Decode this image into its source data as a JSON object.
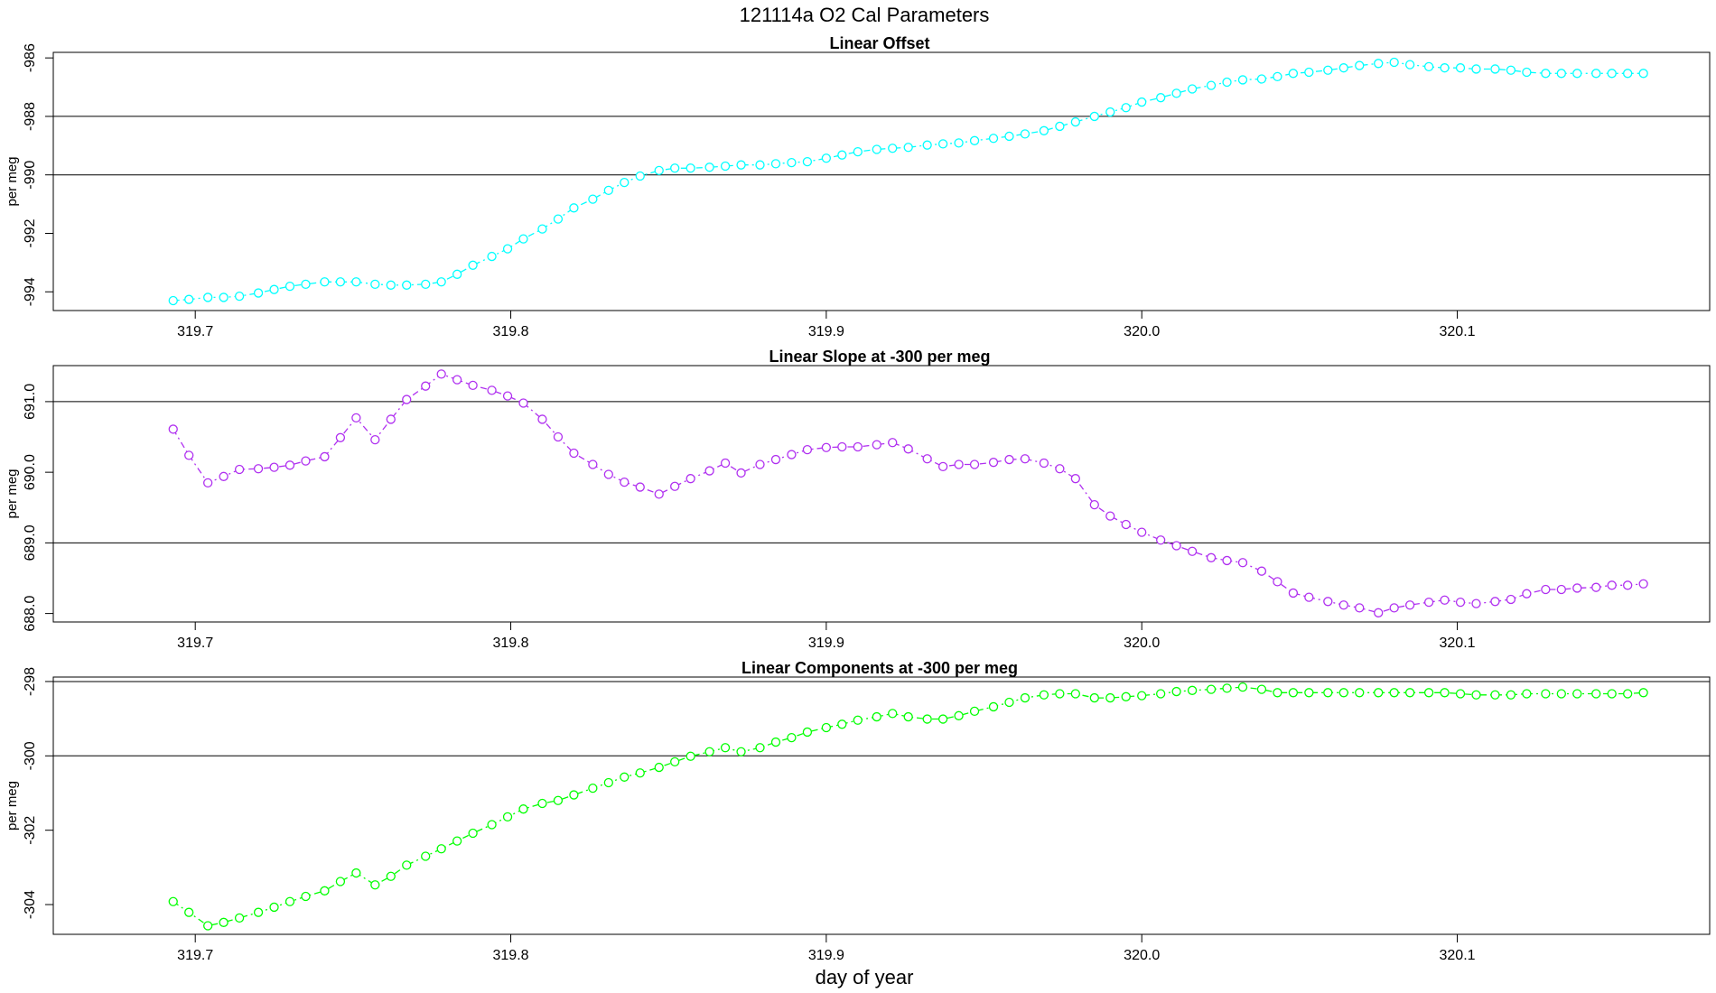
{
  "title": "121114a   O2 Cal Parameters",
  "xlabel": "day of year",
  "chart_data": [
    {
      "type": "scatter",
      "title": "Linear Offset",
      "ylabel": "per meg",
      "color": "#00ffff",
      "xlim": [
        319.655,
        320.18
      ],
      "xticks": [
        319.7,
        319.8,
        319.9,
        {
          "value": 320.0,
          "label": "320.0"
        },
        320.1
      ],
      "ylim": [
        -994.64,
        -985.81
      ],
      "yticks": [
        -994,
        -992,
        -990,
        -988,
        -986
      ],
      "hlines": [
        -988,
        -990
      ],
      "x": [
        319.693,
        319.698,
        319.704,
        319.709,
        319.714,
        319.72,
        319.725,
        319.73,
        319.735,
        319.741,
        319.746,
        319.751,
        319.757,
        319.762,
        319.767,
        319.773,
        319.778,
        319.783,
        319.788,
        319.794,
        319.799,
        319.804,
        319.81,
        319.815,
        319.82,
        319.826,
        319.831,
        319.836,
        319.841,
        319.847,
        319.852,
        319.857,
        319.863,
        319.868,
        319.873,
        319.879,
        319.884,
        319.889,
        319.894,
        319.9,
        319.905,
        319.91,
        319.916,
        319.921,
        319.926,
        319.932,
        319.937,
        319.942,
        319.947,
        319.953,
        319.958,
        319.963,
        319.969,
        319.974,
        319.979,
        319.985,
        319.99,
        319.995,
        320.0,
        320.006,
        320.011,
        320.016,
        320.022,
        320.027,
        320.032,
        320.038,
        320.043,
        320.048,
        320.053,
        320.059,
        320.064,
        320.069,
        320.075,
        320.08,
        320.085,
        320.091,
        320.096,
        320.101,
        320.106,
        320.112,
        320.117,
        320.122,
        320.128,
        320.133,
        320.138,
        320.144,
        320.149,
        320.154,
        320.159
      ],
      "values": [
        -994.3,
        -994.26,
        -994.19,
        -994.19,
        -994.15,
        -994.04,
        -993.92,
        -993.81,
        -993.74,
        -993.66,
        -993.66,
        -993.66,
        -993.74,
        -993.77,
        -993.77,
        -993.74,
        -993.66,
        -993.4,
        -993.09,
        -992.79,
        -992.53,
        -992.19,
        -991.85,
        -991.51,
        -991.13,
        -990.83,
        -990.53,
        -990.26,
        -990.04,
        -989.85,
        -989.77,
        -989.77,
        -989.74,
        -989.7,
        -989.66,
        -989.66,
        -989.62,
        -989.58,
        -989.55,
        -989.43,
        -989.32,
        -989.21,
        -989.13,
        -989.09,
        -989.06,
        -988.98,
        -988.94,
        -988.91,
        -988.83,
        -988.75,
        -988.68,
        -988.6,
        -988.49,
        -988.34,
        -988.19,
        -988.0,
        -987.85,
        -987.7,
        -987.51,
        -987.36,
        -987.21,
        -987.06,
        -986.94,
        -986.83,
        -986.75,
        -986.72,
        -986.64,
        -986.53,
        -986.49,
        -986.42,
        -986.34,
        -986.26,
        -986.19,
        -986.15,
        -986.23,
        -986.3,
        -986.34,
        -986.34,
        -986.38,
        -986.38,
        -986.42,
        -986.49,
        -986.53,
        -986.53,
        -986.53,
        -986.53,
        -986.53,
        -986.53,
        -986.53
      ]
    },
    {
      "type": "scatter",
      "title": "Linear Slope at -300 per meg",
      "ylabel": "per meg",
      "color": "#b030f0",
      "xlim": [
        319.655,
        320.18
      ],
      "xticks": [
        319.7,
        319.8,
        319.9,
        {
          "value": 320.0,
          "label": "320.0"
        },
        320.1
      ],
      "ylim": [
        687.88,
        691.51
      ],
      "yticks": [
        {
          "value": 688,
          "label": "688.0"
        },
        {
          "value": 689,
          "label": "689.0"
        },
        {
          "value": 690,
          "label": "690.0"
        },
        {
          "value": 691,
          "label": "691.0"
        }
      ],
      "hlines": [
        691,
        689
      ],
      "x": [
        319.693,
        319.698,
        319.704,
        319.709,
        319.714,
        319.72,
        319.725,
        319.73,
        319.735,
        319.741,
        319.746,
        319.751,
        319.757,
        319.762,
        319.767,
        319.773,
        319.778,
        319.783,
        319.788,
        319.794,
        319.799,
        319.804,
        319.81,
        319.815,
        319.82,
        319.826,
        319.831,
        319.836,
        319.841,
        319.847,
        319.852,
        319.857,
        319.863,
        319.868,
        319.873,
        319.879,
        319.884,
        319.889,
        319.894,
        319.9,
        319.905,
        319.91,
        319.916,
        319.921,
        319.926,
        319.932,
        319.937,
        319.942,
        319.947,
        319.953,
        319.958,
        319.963,
        319.969,
        319.974,
        319.979,
        319.985,
        319.99,
        319.995,
        320.0,
        320.006,
        320.011,
        320.016,
        320.022,
        320.027,
        320.032,
        320.038,
        320.043,
        320.048,
        320.053,
        320.059,
        320.064,
        320.069,
        320.075,
        320.08,
        320.085,
        320.091,
        320.096,
        320.101,
        320.106,
        320.112,
        320.117,
        320.122,
        320.128,
        320.133,
        320.138,
        320.144,
        320.149,
        320.154,
        320.159
      ],
      "values": [
        690.61,
        690.24,
        689.85,
        689.94,
        690.04,
        690.05,
        690.07,
        690.1,
        690.16,
        690.22,
        690.49,
        690.77,
        690.46,
        690.75,
        691.03,
        691.22,
        691.39,
        691.31,
        691.23,
        691.16,
        691.08,
        690.98,
        690.75,
        690.5,
        690.27,
        690.11,
        689.97,
        689.86,
        689.79,
        689.69,
        689.8,
        689.91,
        690.02,
        690.13,
        689.99,
        690.11,
        690.18,
        690.25,
        690.32,
        690.35,
        690.36,
        690.36,
        690.39,
        690.42,
        690.33,
        690.19,
        690.08,
        690.11,
        690.11,
        690.14,
        690.18,
        690.19,
        690.13,
        690.05,
        689.91,
        689.54,
        689.38,
        689.26,
        689.15,
        689.04,
        688.96,
        688.88,
        688.79,
        688.75,
        688.72,
        688.6,
        688.45,
        688.29,
        688.23,
        688.17,
        688.12,
        688.08,
        688.01,
        688.08,
        688.12,
        688.16,
        688.19,
        688.16,
        688.14,
        688.17,
        688.2,
        688.28,
        688.34,
        688.34,
        688.36,
        688.37,
        688.4,
        688.4,
        688.42
      ]
    },
    {
      "type": "scatter",
      "title": "Linear Components at -300 per meg",
      "ylabel": "per meg",
      "color": "#00ff00",
      "xlim": [
        319.655,
        320.18
      ],
      "xticks": [
        319.7,
        319.8,
        319.9,
        {
          "value": 320.0,
          "label": "320.0"
        },
        320.1
      ],
      "ylim": [
        -304.8,
        -297.88
      ],
      "yticks": [
        -304,
        -302,
        -300,
        -298
      ],
      "hlines": [
        -298,
        -300
      ],
      "x": [
        319.693,
        319.698,
        319.704,
        319.709,
        319.714,
        319.72,
        319.725,
        319.73,
        319.735,
        319.741,
        319.746,
        319.751,
        319.757,
        319.762,
        319.767,
        319.773,
        319.778,
        319.783,
        319.788,
        319.794,
        319.799,
        319.804,
        319.81,
        319.815,
        319.82,
        319.826,
        319.831,
        319.836,
        319.841,
        319.847,
        319.852,
        319.857,
        319.863,
        319.868,
        319.873,
        319.879,
        319.884,
        319.889,
        319.894,
        319.9,
        319.905,
        319.91,
        319.916,
        319.921,
        319.926,
        319.932,
        319.937,
        319.942,
        319.947,
        319.953,
        319.958,
        319.963,
        319.969,
        319.974,
        319.979,
        319.985,
        319.99,
        319.995,
        320.0,
        320.006,
        320.011,
        320.016,
        320.022,
        320.027,
        320.032,
        320.038,
        320.043,
        320.048,
        320.053,
        320.059,
        320.064,
        320.069,
        320.075,
        320.08,
        320.085,
        320.091,
        320.096,
        320.101,
        320.106,
        320.112,
        320.117,
        320.122,
        320.128,
        320.133,
        320.138,
        320.144,
        320.149,
        320.154,
        320.159
      ],
      "values": [
        -303.92,
        -304.21,
        -304.57,
        -304.48,
        -304.36,
        -304.21,
        -304.07,
        -303.92,
        -303.78,
        -303.63,
        -303.38,
        -303.15,
        -303.47,
        -303.24,
        -302.94,
        -302.7,
        -302.5,
        -302.29,
        -302.08,
        -301.85,
        -301.64,
        -301.43,
        -301.28,
        -301.2,
        -301.05,
        -300.87,
        -300.72,
        -300.57,
        -300.46,
        -300.31,
        -300.16,
        -300.01,
        -299.89,
        -299.78,
        -299.89,
        -299.78,
        -299.63,
        -299.51,
        -299.36,
        -299.24,
        -299.15,
        -299.04,
        -298.95,
        -298.86,
        -298.95,
        -299.01,
        -299.01,
        -298.92,
        -298.8,
        -298.68,
        -298.56,
        -298.44,
        -298.36,
        -298.33,
        -298.33,
        -298.44,
        -298.44,
        -298.41,
        -298.38,
        -298.33,
        -298.27,
        -298.24,
        -298.21,
        -298.18,
        -298.15,
        -298.21,
        -298.3,
        -298.3,
        -298.3,
        -298.3,
        -298.3,
        -298.3,
        -298.3,
        -298.3,
        -298.3,
        -298.3,
        -298.3,
        -298.33,
        -298.36,
        -298.36,
        -298.36,
        -298.33,
        -298.33,
        -298.33,
        -298.33,
        -298.33,
        -298.33,
        -298.33,
        -298.3
      ]
    }
  ]
}
